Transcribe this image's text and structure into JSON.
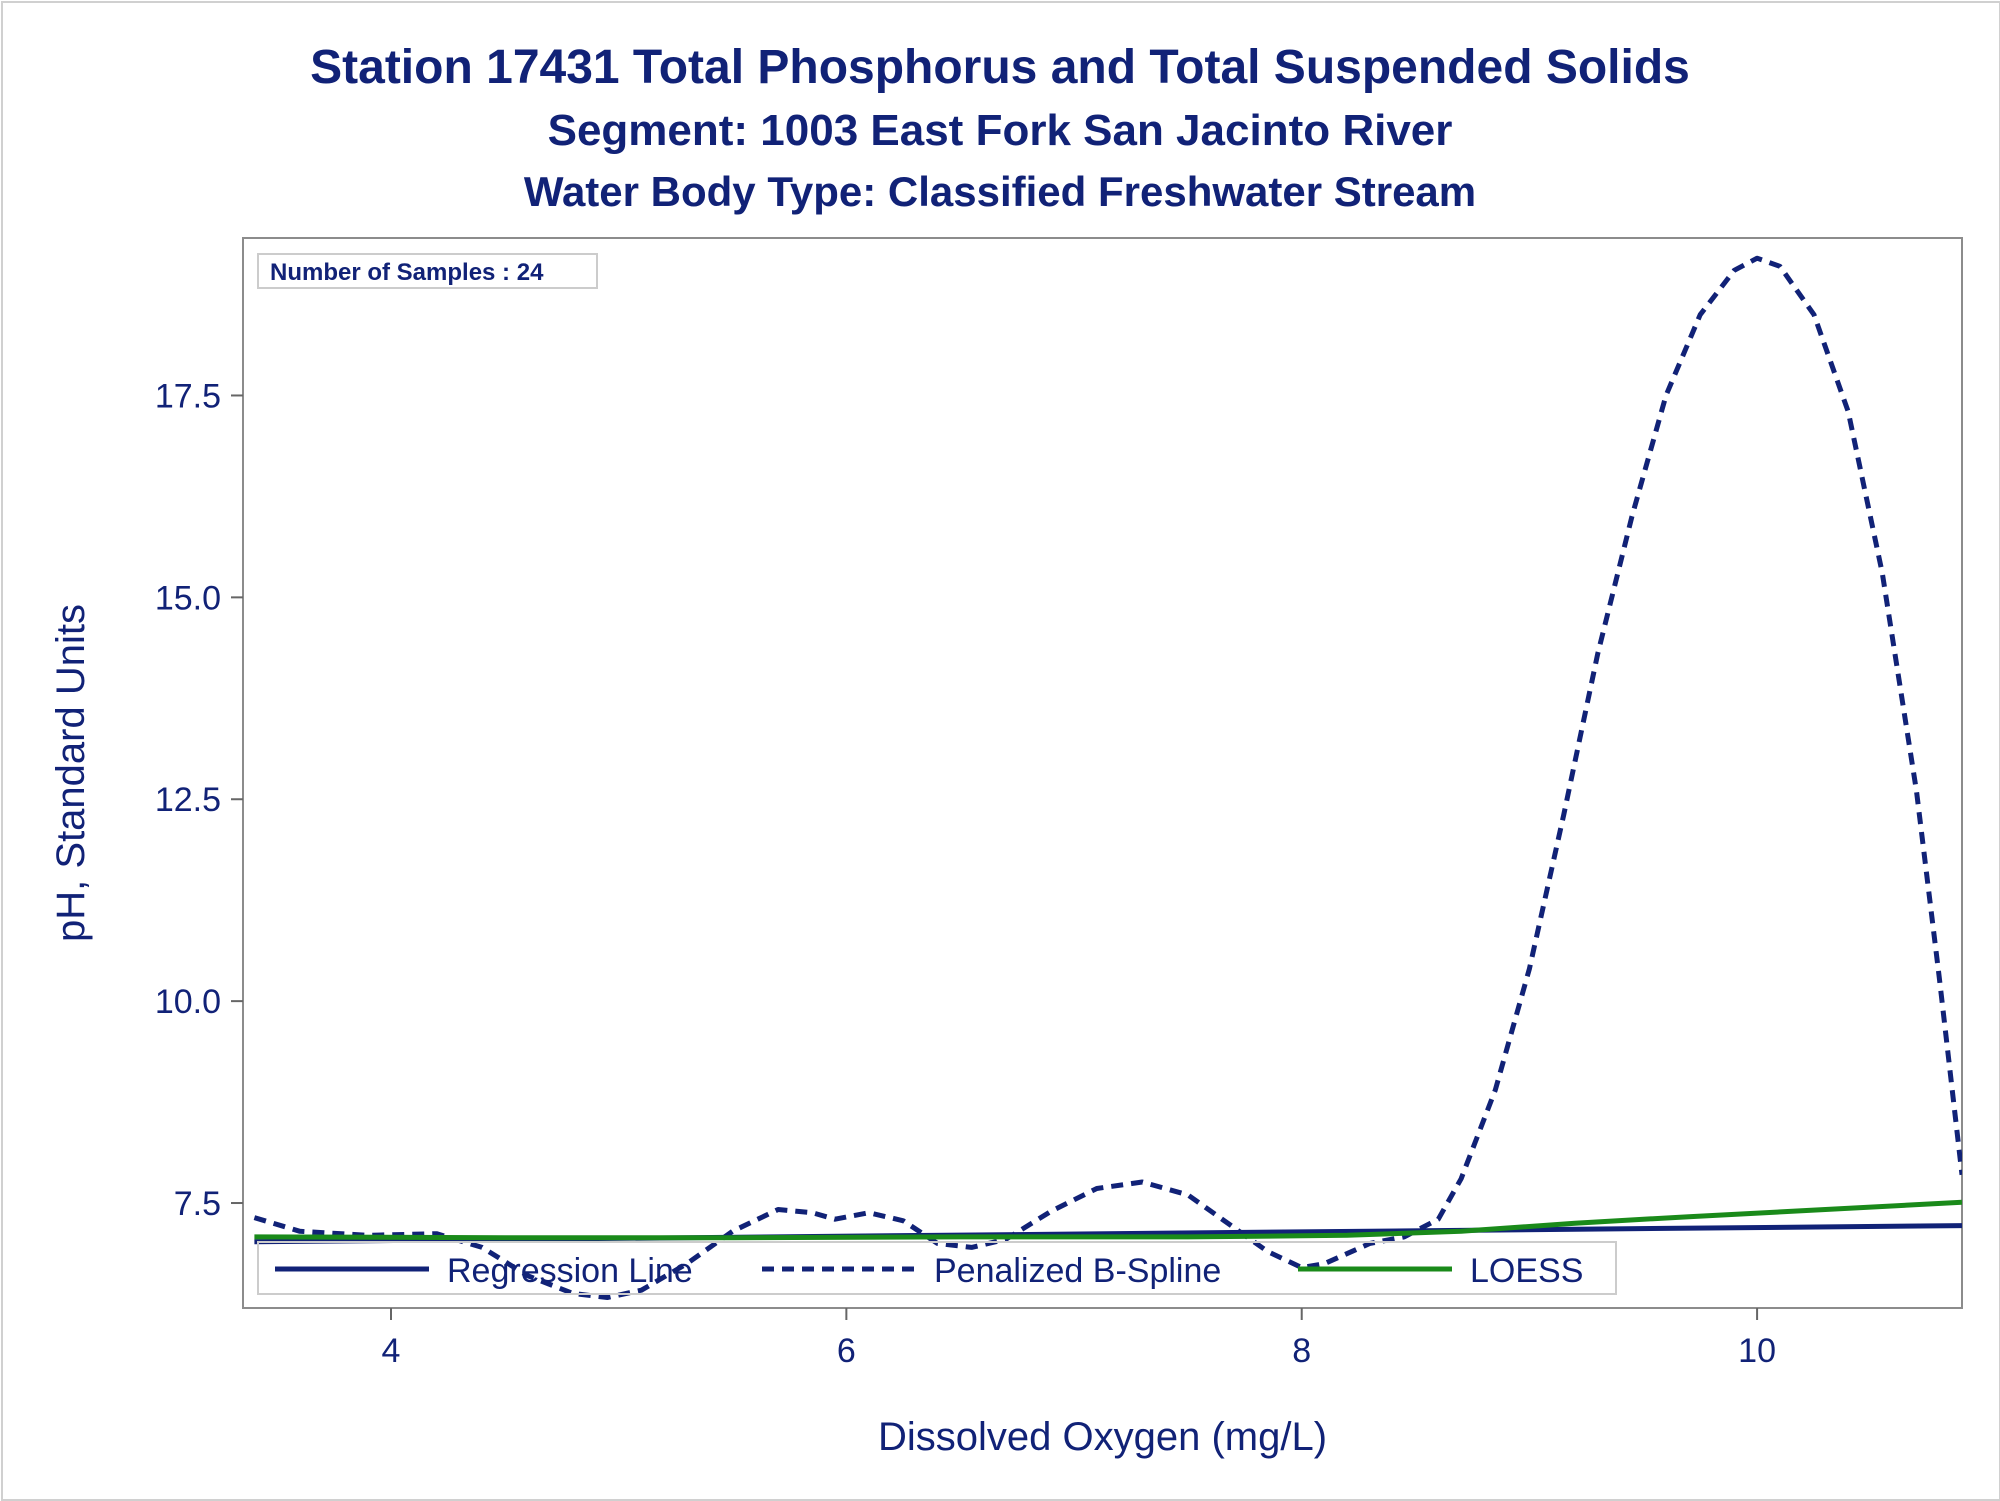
{
  "chart_data": {
    "type": "line",
    "title": "Station 17431  Total Phosphorus and Total Suspended Solids",
    "subtitle": "Segment: 1003  East Fork San Jacinto River",
    "subtitle2": "Water Body Type: Classified Freshwater Stream",
    "xlabel": "Dissolved Oxygen (mg/L)",
    "ylabel": "pH, Standard Units",
    "xlim": [
      3.35,
      10.9
    ],
    "ylim": [
      6.2,
      19.45
    ],
    "x_ticks": [
      {
        "v": 4,
        "label": "4"
      },
      {
        "v": 6,
        "label": "6"
      },
      {
        "v": 8,
        "label": "8"
      },
      {
        "v": 10,
        "label": "10"
      }
    ],
    "y_ticks": [
      {
        "v": 7.5,
        "label": "7.5"
      },
      {
        "v": 10.0,
        "label": "10.0"
      },
      {
        "v": 12.5,
        "label": "12.5"
      },
      {
        "v": 15.0,
        "label": "15.0"
      },
      {
        "v": 17.5,
        "label": "17.5"
      }
    ],
    "inset_label": "Number of Samples : 24",
    "legend_position": "bottom-inside",
    "series": [
      {
        "name": "Regression Line",
        "style": "solid",
        "color": "#112277",
        "points": [
          [
            3.4,
            7.02
          ],
          [
            10.9,
            7.22
          ]
        ]
      },
      {
        "name": "Penalized B-Spline",
        "style": "dashed",
        "color": "#112277",
        "points": [
          [
            3.4,
            7.32
          ],
          [
            3.6,
            7.15
          ],
          [
            3.9,
            7.1
          ],
          [
            4.2,
            7.12
          ],
          [
            4.4,
            6.95
          ],
          [
            4.6,
            6.6
          ],
          [
            4.8,
            6.38
          ],
          [
            4.95,
            6.33
          ],
          [
            5.1,
            6.42
          ],
          [
            5.3,
            6.75
          ],
          [
            5.5,
            7.15
          ],
          [
            5.7,
            7.42
          ],
          [
            5.85,
            7.38
          ],
          [
            5.95,
            7.3
          ],
          [
            6.1,
            7.38
          ],
          [
            6.25,
            7.28
          ],
          [
            6.4,
            7.0
          ],
          [
            6.55,
            6.95
          ],
          [
            6.7,
            7.05
          ],
          [
            6.9,
            7.4
          ],
          [
            7.1,
            7.68
          ],
          [
            7.3,
            7.76
          ],
          [
            7.5,
            7.6
          ],
          [
            7.7,
            7.2
          ],
          [
            7.85,
            6.9
          ],
          [
            8.0,
            6.7
          ],
          [
            8.1,
            6.75
          ],
          [
            8.3,
            7.0
          ],
          [
            8.45,
            7.08
          ],
          [
            8.6,
            7.3
          ],
          [
            8.7,
            7.8
          ],
          [
            8.85,
            8.9
          ],
          [
            9.0,
            10.4
          ],
          [
            9.15,
            12.3
          ],
          [
            9.3,
            14.3
          ],
          [
            9.45,
            16.0
          ],
          [
            9.6,
            17.5
          ],
          [
            9.75,
            18.5
          ],
          [
            9.9,
            19.05
          ],
          [
            10.0,
            19.2
          ],
          [
            10.1,
            19.1
          ],
          [
            10.25,
            18.5
          ],
          [
            10.4,
            17.3
          ],
          [
            10.55,
            15.3
          ],
          [
            10.7,
            12.6
          ],
          [
            10.8,
            10.3
          ],
          [
            10.9,
            7.85
          ]
        ]
      },
      {
        "name": "LOESS",
        "style": "solid",
        "color": "#1a8a1a",
        "points": [
          [
            3.4,
            7.08
          ],
          [
            4.5,
            7.07
          ],
          [
            5.5,
            7.07
          ],
          [
            6.5,
            7.08
          ],
          [
            7.5,
            7.08
          ],
          [
            8.2,
            7.1
          ],
          [
            8.7,
            7.15
          ],
          [
            9.2,
            7.25
          ],
          [
            9.7,
            7.33
          ],
          [
            10.3,
            7.42
          ],
          [
            10.9,
            7.51
          ]
        ]
      }
    ]
  }
}
